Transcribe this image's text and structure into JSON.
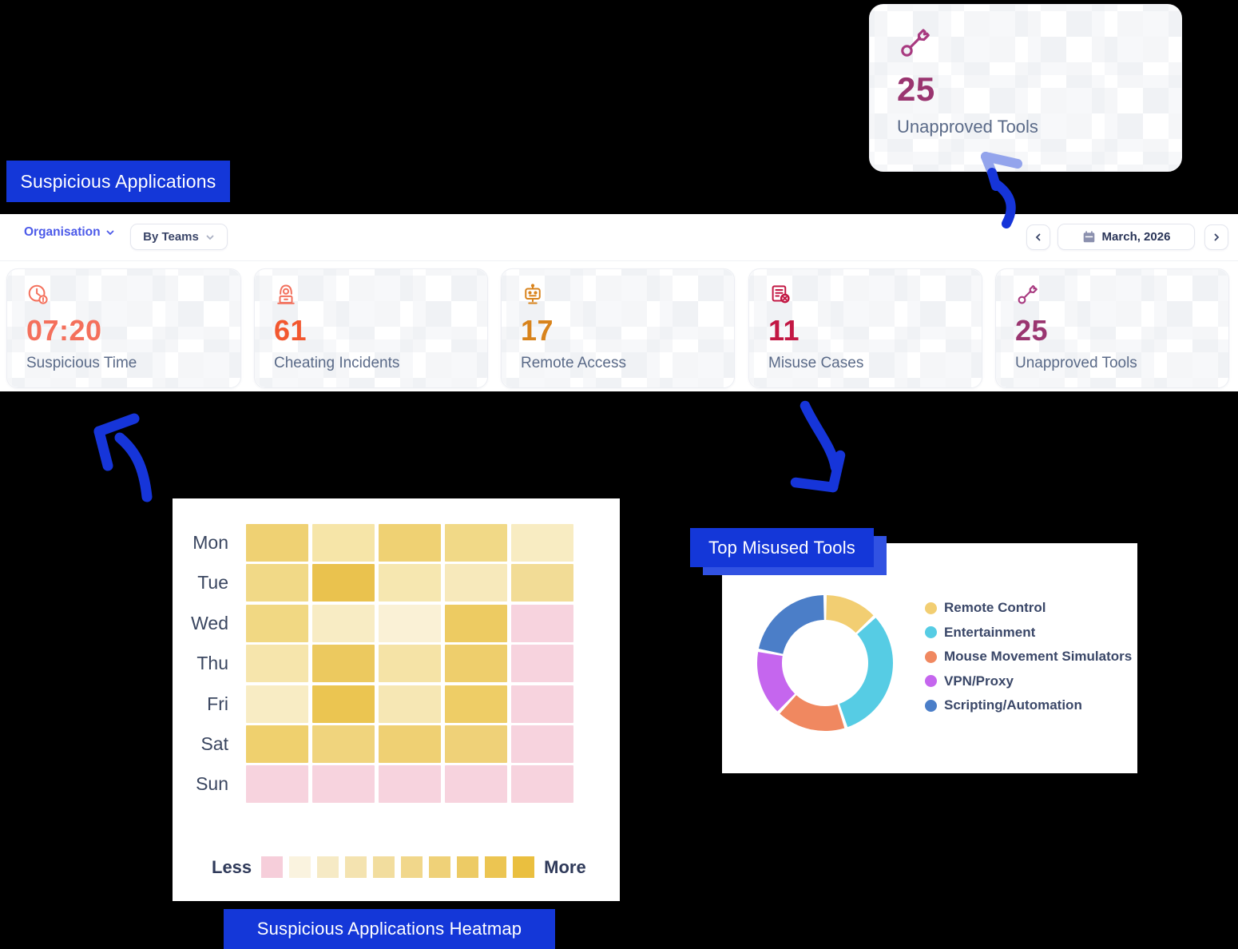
{
  "colors": {
    "banner_blue": "#1437d8",
    "banner_shadow_blue": "#3152e2",
    "arrow_blue": "#1635d9",
    "arrow_light_blue": "#93a4ec",
    "accent_link": "#4c5ae9"
  },
  "banners": {
    "suspicious_applications": "Suspicious Applications",
    "heatmap": "Suspicious Applications Heatmap",
    "top_misused": "Top Misused Tools"
  },
  "toolbar": {
    "organisation_label": "Organisation",
    "by_teams_label": "By Teams",
    "date_label": "March, 2026"
  },
  "featured_card": {
    "value": "25",
    "label": "Unapproved Tools",
    "color": "#9a3570"
  },
  "stat_cards": [
    {
      "value": "07:20",
      "label": "Suspicious Time",
      "color": "#f4705c"
    },
    {
      "value": "61",
      "label": "Cheating Incidents",
      "color": "#f2572f"
    },
    {
      "value": "17",
      "label": "Remote Access",
      "color": "#d8831c"
    },
    {
      "value": "11",
      "label": "Misuse Cases",
      "color": "#c21743"
    },
    {
      "value": "25",
      "label": "Unapproved Tools",
      "color": "#9a3570"
    }
  ],
  "chart_data": [
    {
      "type": "heatmap",
      "title": "Suspicious Applications Heatmap",
      "rows": [
        "Mon",
        "Tue",
        "Wed",
        "Thu",
        "Fri",
        "Sat",
        "Sun"
      ],
      "columns": 5,
      "values": [
        [
          7,
          3,
          7,
          5,
          2
        ],
        [
          5,
          9,
          3,
          2,
          4
        ],
        [
          5,
          2,
          1,
          8,
          0
        ],
        [
          3,
          8,
          4,
          7,
          0
        ],
        [
          2,
          8,
          3,
          7,
          0
        ],
        [
          7,
          6,
          7,
          7,
          0
        ],
        [
          0,
          0,
          0,
          0,
          0
        ]
      ],
      "cell_colors": [
        [
          "#efd173",
          "#f6e5a8",
          "#efd173",
          "#f1d987",
          "#f8ecc2"
        ],
        [
          "#f1d987",
          "#eac24e",
          "#f6e7b0",
          "#f7e9bb",
          "#f2dc96"
        ],
        [
          "#f1d883",
          "#f8ecc4",
          "#faf1d6",
          "#edcb62",
          "#f7d3de"
        ],
        [
          "#f6e5ac",
          "#ecc95f",
          "#f5e3a6",
          "#eece6c",
          "#f7d3de"
        ],
        [
          "#f8ecc4",
          "#ebc551",
          "#f6e7b4",
          "#eecd66",
          "#f7d3de"
        ],
        [
          "#efd06e",
          "#f0d47d",
          "#efd073",
          "#efd178",
          "#f7d3de"
        ],
        [
          "#f7d3de",
          "#f7d3de",
          "#f7d3de",
          "#f7d3de",
          "#f7d3de"
        ]
      ],
      "legend": {
        "less_label": "Less",
        "more_label": "More",
        "scale": [
          "#f6ceda",
          "#faf3df",
          "#f6eac5",
          "#f4e3b0",
          "#f2dd9e",
          "#f1d78b",
          "#efd178",
          "#edcb65",
          "#ecc552",
          "#eabf3f"
        ]
      }
    },
    {
      "type": "pie",
      "donut": true,
      "title": "Top Misused Tools",
      "legend_position": "right",
      "series": [
        {
          "name": "Remote Control",
          "value": 13,
          "color": "#f2ce72"
        },
        {
          "name": "Entertainment",
          "value": 32,
          "color": "#56cce4"
        },
        {
          "name": "Mouse Movement Simulators",
          "value": 17,
          "color": "#f08860"
        },
        {
          "name": "VPN/Proxy",
          "value": 16,
          "color": "#c566ee"
        },
        {
          "name": "Scripting/Automation",
          "value": 22,
          "color": "#4b7ec8"
        }
      ]
    }
  ]
}
